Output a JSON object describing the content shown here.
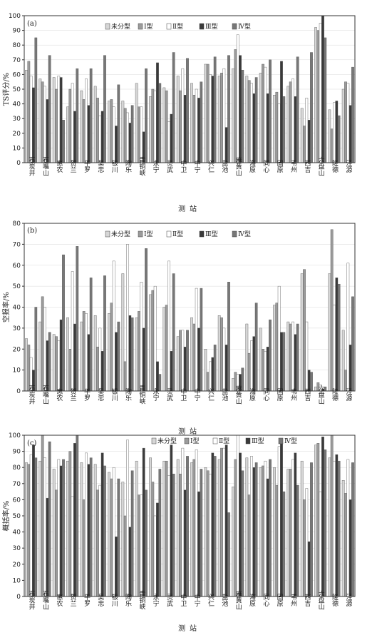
{
  "colors": {
    "未分型": "#d6d6d6",
    "I型": "#9b9b9b",
    "II型": "#ffffff",
    "III型": "#3a3a3a",
    "IV型": "#777777"
  },
  "chart_data": [
    {
      "type": "bar",
      "panel": "(a)",
      "ylabel": "TS评分/%",
      "xlabel": "测站",
      "ylim": [
        0,
        100
      ],
      "yticks": [
        0,
        10,
        20,
        30,
        40,
        50,
        60,
        70,
        80,
        90,
        100
      ],
      "legend_position": "top-center",
      "categories": [
        "石炭井",
        "石嘴山",
        "惠农",
        "贺兰",
        "平罗",
        "吴忠",
        "银川",
        "陶乐",
        "青铜峡",
        "永宁",
        "灵武",
        "中卫",
        "中宁",
        "兴仁",
        "盐池",
        "麻黄山",
        "海原",
        "同心",
        "固原",
        "韦州",
        "西吉",
        "六盘山",
        "隆德",
        "泾源"
      ],
      "series": [
        {
          "name": "未分型",
          "values": [
            63,
            57,
            58,
            38,
            49,
            52,
            42,
            42,
            54,
            45,
            51,
            59,
            54,
            67,
            59,
            64,
            59,
            61,
            46,
            52,
            37,
            92,
            36,
            50
          ]
        },
        {
          "name": "I型",
          "values": [
            69,
            55,
            50,
            50,
            43,
            44,
            43,
            37,
            38,
            50,
            49,
            49,
            46,
            67,
            61,
            77,
            56,
            67,
            48,
            55,
            25,
            90,
            23,
            55
          ]
        },
        {
          "name": "II型",
          "values": [
            59,
            52,
            59,
            54,
            57,
            32,
            38,
            34,
            38,
            49,
            28,
            64,
            50,
            60,
            64,
            87,
            54,
            65,
            40,
            57,
            44,
            95,
            41,
            54
          ]
        },
        {
          "name": "III型",
          "values": [
            51,
            43,
            58,
            35,
            39,
            35,
            25,
            27,
            21,
            68,
            33,
            46,
            44,
            59,
            24,
            73,
            47,
            47,
            69,
            45,
            29,
            100,
            42,
            39
          ]
        },
        {
          "name": "IV型",
          "values": [
            85,
            73,
            29,
            64,
            64,
            73,
            53,
            39,
            64,
            54,
            75,
            71,
            55,
            72,
            73,
            63,
            58,
            70,
            45,
            72,
            75,
            85,
            32,
            65
          ]
        }
      ]
    },
    {
      "type": "bar",
      "panel": "(b)",
      "ylabel": "空报率/%",
      "xlabel": "测站",
      "ylim": [
        0,
        80
      ],
      "yticks": [
        0,
        10,
        20,
        30,
        40,
        50,
        60,
        70,
        80
      ],
      "legend_position": "top-center",
      "categories": [
        "石炭井",
        "石嘴山",
        "惠农",
        "贺兰",
        "平罗",
        "吴忠",
        "银川",
        "陶乐",
        "青铜峡",
        "永宁",
        "灵武",
        "中卫",
        "中宁",
        "兴仁",
        "盐池",
        "麻黄山",
        "海原",
        "同心",
        "固原",
        "韦州",
        "西吉",
        "六盘山",
        "隆德",
        "泾源"
      ],
      "series": [
        {
          "name": "未分型",
          "values": [
            25,
            33,
            27,
            35,
            33,
            36,
            37,
            56,
            35,
            46,
            40,
            26,
            35,
            20,
            36,
            6,
            32,
            30,
            41,
            33,
            56,
            2,
            56,
            29
          ]
        },
        {
          "name": "I型",
          "values": [
            22,
            45,
            26,
            20,
            38,
            21,
            42,
            14,
            38,
            48,
            41,
            29,
            32,
            9,
            35,
            9,
            18,
            20,
            42,
            32,
            58,
            4,
            77,
            10
          ]
        },
        {
          "name": "II型",
          "values": [
            16,
            40,
            24,
            57,
            37,
            30,
            62,
            70,
            52,
            50,
            62,
            29,
            49,
            14,
            30,
            8,
            24,
            19,
            50,
            33,
            33,
            3,
            41,
            61
          ]
        },
        {
          "name": "III型",
          "values": [
            10,
            24,
            34,
            32,
            27,
            19,
            28,
            36,
            30,
            14,
            19,
            21,
            30,
            16,
            22,
            8,
            26,
            21,
            28,
            27,
            10,
            1,
            54,
            22
          ]
        },
        {
          "name": "IV型",
          "values": [
            40,
            28,
            65,
            69,
            54,
            55,
            33,
            35,
            68,
            8,
            56,
            29,
            49,
            22,
            52,
            11,
            42,
            34,
            28,
            32,
            9,
            2,
            51,
            45
          ]
        }
      ]
    },
    {
      "type": "bar",
      "panel": "(c)",
      "ylabel": "概括率/%",
      "xlabel": "测站",
      "ylim": [
        0,
        100
      ],
      "yticks": [
        0,
        10,
        20,
        30,
        40,
        50,
        60,
        70,
        80,
        90,
        100
      ],
      "legend_position": "top-center",
      "categories": [
        "石炭井",
        "石嘴山",
        "惠农",
        "贺兰",
        "平罗",
        "吴忠",
        "银川",
        "陶乐",
        "青铜峡",
        "永宁",
        "灵武",
        "中卫",
        "中宁",
        "兴仁",
        "盐池",
        "麻黄山",
        "海原",
        "同心",
        "固原",
        "韦州",
        "西吉",
        "六盘山",
        "隆德",
        "泾源"
      ],
      "series": [
        {
          "name": "未分型",
          "values": [
            83,
            84,
            79,
            84,
            83,
            82,
            77,
            71,
            84,
            86,
            84,
            85,
            83,
            80,
            85,
            68,
            86,
            80,
            80,
            79,
            84,
            94,
            86,
            72
          ]
        },
        {
          "name": "I型",
          "values": [
            82,
            100,
            66,
            90,
            60,
            66,
            73,
            50,
            63,
            71,
            84,
            76,
            85,
            78,
            92,
            85,
            63,
            81,
            69,
            79,
            60,
            95,
            100,
            64
          ]
        },
        {
          "name": "II型",
          "values": [
            88,
            86,
            85,
            62,
            89,
            69,
            80,
            97,
            63,
            50,
            75,
            92,
            91,
            76,
            92,
            100,
            87,
            84,
            93,
            85,
            67,
            65,
            84,
            85
          ]
        },
        {
          "name": "III型",
          "values": [
            94,
            61,
            81,
            95,
            82,
            89,
            37,
            43,
            92,
            58,
            94,
            66,
            65,
            89,
            94,
            89,
            80,
            73,
            96,
            89,
            34,
            99,
            88,
            60
          ]
        },
        {
          "name": "IV型",
          "values": [
            86,
            96,
            85,
            100,
            86,
            81,
            73,
            78,
            66,
            79,
            76,
            87,
            79,
            87,
            52,
            78,
            83,
            85,
            65,
            69,
            83,
            91,
            84,
            83
          ]
        }
      ]
    }
  ],
  "legend_labels": [
    "未分型",
    "I型",
    "II型",
    "III型",
    "IV型"
  ]
}
